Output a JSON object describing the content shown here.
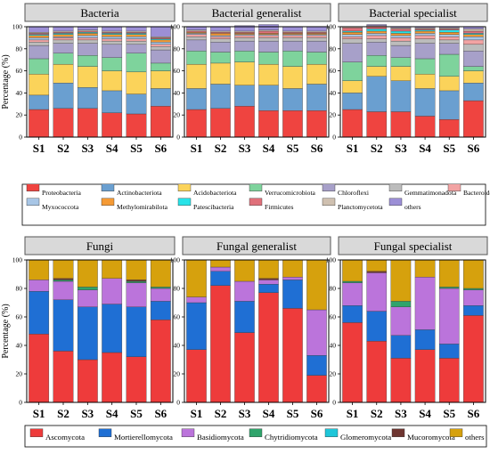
{
  "figure": {
    "ylabel": "Percentage (%)",
    "samples": [
      "S1",
      "S2",
      "S3",
      "S4",
      "S5",
      "S6"
    ],
    "yticks": [
      "0",
      "20",
      "40",
      "60",
      "80",
      "100"
    ]
  },
  "legends": {
    "bacteria": [
      {
        "label": "Proteobacteria",
        "color": "#ef4440"
      },
      {
        "label": "Actinobacteriota",
        "color": "#6a9fd0"
      },
      {
        "label": "Acidobacteriota",
        "color": "#fbd35a"
      },
      {
        "label": "Verrucomicrobiota",
        "color": "#7ed39c"
      },
      {
        "label": "Chloroflexi",
        "color": "#a7a0c9"
      },
      {
        "label": "Gemmatimonadota",
        "color": "#bcbcbc"
      },
      {
        "label": "Bacteroidota",
        "color": "#f2a3a3"
      },
      {
        "label": "Myxococcota",
        "color": "#a8c6e6"
      },
      {
        "label": "Methylomirabilota",
        "color": "#f59a34"
      },
      {
        "label": "Patescibacteria",
        "color": "#27e3e8"
      },
      {
        "label": "Firmicutes",
        "color": "#e0707a"
      },
      {
        "label": "Planctomycetota",
        "color": "#cfc0b0"
      },
      {
        "label": "others",
        "color": "#9c8fd6"
      }
    ],
    "fungi": [
      {
        "label": "Ascomycota",
        "color": "#ee3b3b"
      },
      {
        "label": "Mortierellomycota",
        "color": "#1f6fd4"
      },
      {
        "label": "Basidiomycota",
        "color": "#bb74db"
      },
      {
        "label": "Chytridiomycota",
        "color": "#2fa46b"
      },
      {
        "label": "Glomeromycota",
        "color": "#1ec6d9"
      },
      {
        "label": "Mucoromycota",
        "color": "#6e3530"
      },
      {
        "label": "others",
        "color": "#d6a10d"
      }
    ]
  },
  "chart_data": [
    {
      "type": "bar",
      "stacked": true,
      "title": "Bacteria",
      "group": "bacteria",
      "categories": [
        "S1",
        "S2",
        "S3",
        "S4",
        "S5",
        "S6"
      ],
      "ylim": [
        0,
        100
      ],
      "ylabel": "Percentage (%)",
      "series": [
        {
          "name": "Proteobacteria",
          "values": [
            25,
            26,
            26,
            22,
            21,
            28
          ]
        },
        {
          "name": "Actinobacteriota",
          "values": [
            13,
            23,
            19,
            20,
            18,
            16
          ]
        },
        {
          "name": "Acidobacteriota",
          "values": [
            19,
            17,
            19,
            18,
            20,
            16
          ]
        },
        {
          "name": "Verrucomicrobiota",
          "values": [
            14,
            10,
            10,
            12,
            17,
            7
          ]
        },
        {
          "name": "Chloroflexi",
          "values": [
            12,
            9,
            11,
            12,
            8,
            12
          ]
        },
        {
          "name": "Gemmatimonadota",
          "values": [
            3,
            3,
            3,
            3,
            3,
            3
          ]
        },
        {
          "name": "Bacteroidota",
          "values": [
            2,
            2,
            2,
            2,
            2,
            2
          ]
        },
        {
          "name": "Myxococcota",
          "values": [
            2,
            1,
            2,
            2,
            2,
            2
          ]
        },
        {
          "name": "Methylomirabilota",
          "values": [
            2,
            2,
            2,
            2,
            2,
            2
          ]
        },
        {
          "name": "Patescibacteria",
          "values": [
            1,
            1,
            1,
            1,
            1,
            1
          ]
        },
        {
          "name": "Firmicutes",
          "values": [
            1,
            1,
            1,
            1,
            1,
            1
          ]
        },
        {
          "name": "Planctomycetota",
          "values": [
            1,
            1,
            1,
            1,
            1,
            1
          ]
        },
        {
          "name": "others",
          "values": [
            5,
            4,
            3,
            4,
            4,
            9
          ]
        }
      ]
    },
    {
      "type": "bar",
      "stacked": true,
      "title": "Bacterial generalist",
      "group": "bacteria",
      "categories": [
        "S1",
        "S2",
        "S3",
        "S4",
        "S5",
        "S6"
      ],
      "ylim": [
        0,
        100
      ],
      "series": [
        {
          "name": "Proteobacteria",
          "values": [
            25,
            26,
            28,
            24,
            24,
            24
          ]
        },
        {
          "name": "Actinobacteriota",
          "values": [
            19,
            22,
            19,
            23,
            20,
            24
          ]
        },
        {
          "name": "Acidobacteriota",
          "values": [
            22,
            19,
            21,
            19,
            20,
            18
          ]
        },
        {
          "name": "Verrucomicrobiota",
          "values": [
            12,
            10,
            10,
            11,
            14,
            11
          ]
        },
        {
          "name": "Chloroflexi",
          "values": [
            10,
            9,
            9,
            10,
            9,
            10
          ]
        },
        {
          "name": "Gemmatimonadota",
          "values": [
            3,
            3,
            3,
            3,
            3,
            3
          ]
        },
        {
          "name": "Bacteroidota",
          "values": [
            2,
            2,
            2,
            2,
            2,
            2
          ]
        },
        {
          "name": "Myxococcota",
          "values": [
            1,
            1,
            1,
            1,
            1,
            1
          ]
        },
        {
          "name": "Methylomirabilota",
          "values": [
            1,
            2,
            1,
            1,
            1,
            1
          ]
        },
        {
          "name": "Patescibacteria",
          "values": [
            0,
            0,
            0,
            0,
            0,
            0
          ]
        },
        {
          "name": "Firmicutes",
          "values": [
            1,
            1,
            1,
            2,
            1,
            1
          ]
        },
        {
          "name": "Planctomycetota",
          "values": [
            1,
            1,
            1,
            1,
            1,
            1
          ]
        },
        {
          "name": "others",
          "values": [
            3,
            4,
            5,
            5,
            4,
            4
          ]
        }
      ]
    },
    {
      "type": "bar",
      "stacked": true,
      "title": "Bacterial specialist",
      "group": "bacteria",
      "categories": [
        "S1",
        "S2",
        "S3",
        "S4",
        "S5",
        "S6"
      ],
      "ylim": [
        0,
        100
      ],
      "series": [
        {
          "name": "Proteobacteria",
          "values": [
            25,
            23,
            23,
            19,
            16,
            33
          ]
        },
        {
          "name": "Actinobacteriota",
          "values": [
            15,
            32,
            28,
            25,
            26,
            16
          ]
        },
        {
          "name": "Acidobacteriota",
          "values": [
            11,
            9,
            13,
            13,
            13,
            11
          ]
        },
        {
          "name": "Verrucomicrobiota",
          "values": [
            17,
            10,
            8,
            14,
            20,
            4
          ]
        },
        {
          "name": "Chloroflexi",
          "values": [
            17,
            12,
            11,
            14,
            10,
            14
          ]
        },
        {
          "name": "Gemmatimonadota",
          "values": [
            4,
            3,
            4,
            4,
            3,
            6
          ]
        },
        {
          "name": "Bacteroidota",
          "values": [
            2,
            3,
            3,
            3,
            3,
            4
          ]
        },
        {
          "name": "Myxococcota",
          "values": [
            2,
            2,
            2,
            2,
            2,
            3
          ]
        },
        {
          "name": "Methylomirabilota",
          "values": [
            2,
            2,
            2,
            2,
            2,
            2
          ]
        },
        {
          "name": "Patescibacteria",
          "values": [
            1,
            2,
            2,
            1,
            2,
            1
          ]
        },
        {
          "name": "Firmicutes",
          "values": [
            3,
            2,
            2,
            1,
            1,
            2
          ]
        },
        {
          "name": "Planctomycetota",
          "values": [
            1,
            1,
            1,
            1,
            1,
            2
          ]
        },
        {
          "name": "others",
          "values": [
            0,
            1,
            1,
            1,
            1,
            2
          ]
        }
      ]
    },
    {
      "type": "bar",
      "stacked": true,
      "title": "Fungi",
      "group": "fungi",
      "categories": [
        "S1",
        "S2",
        "S3",
        "S4",
        "S5",
        "S6"
      ],
      "ylim": [
        0,
        100
      ],
      "ylabel": "Percentage (%)",
      "series": [
        {
          "name": "Ascomycota",
          "values": [
            48,
            36,
            30,
            35,
            32,
            58
          ]
        },
        {
          "name": "Mortierellomycota",
          "values": [
            30,
            36,
            37,
            34,
            35,
            13
          ]
        },
        {
          "name": "Basidiomycota",
          "values": [
            8,
            13,
            12,
            18,
            17,
            9
          ]
        },
        {
          "name": "Chytridiomycota",
          "values": [
            0,
            1,
            2,
            0,
            1,
            1
          ]
        },
        {
          "name": "Glomeromycota",
          "values": [
            0,
            0,
            0,
            0,
            0,
            0
          ]
        },
        {
          "name": "Mucoromycota",
          "values": [
            0,
            1,
            0,
            0,
            1,
            0
          ]
        },
        {
          "name": "others",
          "values": [
            14,
            13,
            19,
            13,
            14,
            19
          ]
        }
      ]
    },
    {
      "type": "bar",
      "stacked": true,
      "title": "Fungal generalist",
      "group": "fungi",
      "categories": [
        "S1",
        "S2",
        "S3",
        "S4",
        "S5",
        "S6"
      ],
      "ylim": [
        0,
        100
      ],
      "series": [
        {
          "name": "Ascomycota",
          "values": [
            37,
            82,
            49,
            77,
            66,
            19
          ]
        },
        {
          "name": "Mortierellomycota",
          "values": [
            33,
            10,
            22,
            6,
            20,
            14
          ]
        },
        {
          "name": "Basidiomycota",
          "values": [
            4,
            3,
            14,
            3,
            2,
            32
          ]
        },
        {
          "name": "Chytridiomycota",
          "values": [
            0,
            0,
            0,
            0,
            0,
            0
          ]
        },
        {
          "name": "Glomeromycota",
          "values": [
            0,
            0,
            0,
            0,
            0,
            0
          ]
        },
        {
          "name": "Mucoromycota",
          "values": [
            0,
            0,
            0,
            1,
            0,
            0
          ]
        },
        {
          "name": "others",
          "values": [
            26,
            5,
            15,
            13,
            12,
            35
          ]
        }
      ]
    },
    {
      "type": "bar",
      "stacked": true,
      "title": "Fungal specialist",
      "group": "fungi",
      "categories": [
        "S1",
        "S2",
        "S3",
        "S4",
        "S5",
        "S6"
      ],
      "ylim": [
        0,
        100
      ],
      "series": [
        {
          "name": "Ascomycota",
          "values": [
            56,
            43,
            31,
            37,
            31,
            61
          ]
        },
        {
          "name": "Mortierellomycota",
          "values": [
            12,
            21,
            16,
            14,
            10,
            7
          ]
        },
        {
          "name": "Basidiomycota",
          "values": [
            16,
            27,
            20,
            37,
            39,
            11
          ]
        },
        {
          "name": "Chytridiomycota",
          "values": [
            1,
            0,
            4,
            0,
            1,
            1
          ]
        },
        {
          "name": "Glomeromycota",
          "values": [
            0,
            0,
            0,
            0,
            0,
            0
          ]
        },
        {
          "name": "Mucoromycota",
          "values": [
            0,
            1,
            0,
            0,
            0,
            0
          ]
        },
        {
          "name": "others",
          "values": [
            15,
            8,
            29,
            12,
            19,
            20
          ]
        }
      ]
    }
  ]
}
